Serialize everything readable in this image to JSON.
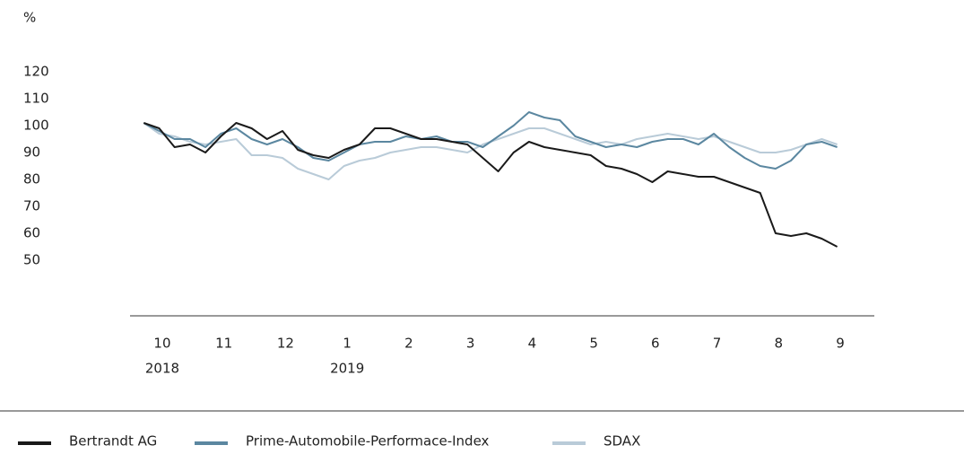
{
  "chart_data": {
    "type": "line",
    "y_unit": "%",
    "x": [
      -0.3,
      -0.05,
      0.2,
      0.45,
      0.7,
      0.95,
      1.2,
      1.45,
      1.7,
      1.95,
      2.2,
      2.45,
      2.7,
      2.95,
      3.2,
      3.45,
      3.7,
      3.95,
      4.2,
      4.45,
      4.7,
      4.95,
      5.2,
      5.45,
      5.7,
      5.95,
      6.2,
      6.45,
      6.7,
      6.95,
      7.2,
      7.45,
      7.7,
      7.95,
      8.2,
      8.45,
      8.7,
      8.95,
      9.2,
      9.45,
      9.7,
      9.95,
      10.2,
      10.45,
      10.7,
      10.95
    ],
    "series": [
      {
        "name": "Bertrandt AG",
        "color": "#1a1a1a",
        "values": [
          101,
          99,
          92,
          93,
          90,
          96,
          101,
          99,
          95,
          98,
          91,
          89,
          88,
          91,
          93,
          99,
          99,
          97,
          95,
          95,
          94,
          93,
          88,
          83,
          90,
          94,
          92,
          91,
          90,
          89,
          85,
          84,
          82,
          79,
          83,
          82,
          81,
          81,
          79,
          77,
          75,
          60,
          59,
          60,
          58,
          55
        ]
      },
      {
        "name": "Prime-Automobile-Performace-Index",
        "color": "#5b87a0",
        "values": [
          101,
          98,
          95,
          95,
          92,
          97,
          99,
          95,
          93,
          95,
          92,
          88,
          87,
          90,
          93,
          94,
          94,
          96,
          95,
          96,
          94,
          94,
          92,
          96,
          100,
          105,
          103,
          102,
          96,
          94,
          92,
          93,
          92,
          94,
          95,
          95,
          93,
          97,
          92,
          88,
          85,
          84,
          87,
          93,
          94,
          92
        ]
      },
      {
        "name": "SDAX",
        "color": "#b9cbd8",
        "values": [
          101,
          97,
          96,
          94,
          93,
          94,
          95,
          89,
          89,
          88,
          84,
          82,
          80,
          85,
          87,
          88,
          90,
          91,
          92,
          92,
          91,
          90,
          93,
          95,
          97,
          99,
          99,
          97,
          95,
          93,
          94,
          93,
          95,
          96,
          97,
          96,
          95,
          96,
          94,
          92,
          90,
          90,
          91,
          93,
          95,
          93
        ]
      }
    ],
    "xlim": [
      -0.5,
      11.5
    ],
    "xticks": [
      {
        "value": 0,
        "label": "10"
      },
      {
        "value": 1,
        "label": "11"
      },
      {
        "value": 2,
        "label": "12"
      },
      {
        "value": 3,
        "label": "1"
      },
      {
        "value": 4,
        "label": "2"
      },
      {
        "value": 5,
        "label": "3"
      },
      {
        "value": 6,
        "label": "4"
      },
      {
        "value": 7,
        "label": "5"
      },
      {
        "value": 8,
        "label": "6"
      },
      {
        "value": 9,
        "label": "7"
      },
      {
        "value": 10,
        "label": "8"
      },
      {
        "value": 11,
        "label": "9"
      }
    ],
    "year_labels": [
      {
        "value": 0,
        "label": "2018"
      },
      {
        "value": 3,
        "label": "2019"
      }
    ],
    "ylim": [
      30,
      120
    ],
    "yticks": [
      50,
      60,
      70,
      80,
      90,
      100,
      110,
      120
    ],
    "legend": "bottom"
  }
}
